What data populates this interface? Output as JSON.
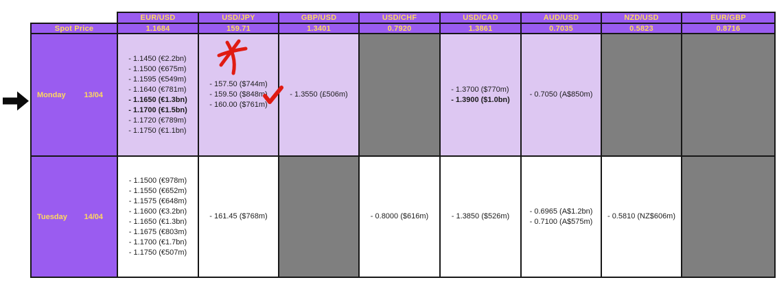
{
  "colors": {
    "purple": "#9a5cf0",
    "lavender": "#ddc7f2",
    "gray": "#7f7f7f",
    "yellow": "#ffd95e",
    "ink": "#1c1c1c",
    "border": "#161616",
    "red": "#e01b12"
  },
  "annotations": {
    "arrow_marker": "black right-arrow pointing at Monday row",
    "asterisk_note": "red hand-drawn asterisk above USD/JPY Monday cell",
    "checkmark_note": "red checkmark beside USD/JPY Monday entry - 159.50 ($848m)"
  },
  "table": {
    "corner_label": "Spot Price",
    "columns": [
      {
        "pair": "EUR/USD",
        "spot": "1.1684"
      },
      {
        "pair": "USD/JPY",
        "spot": "159.71"
      },
      {
        "pair": "GBP/USD",
        "spot": "1.3401"
      },
      {
        "pair": "USD/CHF",
        "spot": "0.7920"
      },
      {
        "pair": "USD/CAD",
        "spot": "1.3861"
      },
      {
        "pair": "AUD/USD",
        "spot": "0.7035"
      },
      {
        "pair": "NZD/USD",
        "spot": "0.5823"
      },
      {
        "pair": "EUR/GBP",
        "spot": "0.8716"
      }
    ],
    "rows": [
      {
        "day": "Monday",
        "date": "13/04",
        "cells": [
          {
            "state": "active",
            "entries": [
              {
                "text": "- 1.1450 (€2.2bn)"
              },
              {
                "text": "- 1.1500 (€675m)"
              },
              {
                "text": "- 1.1595 (€549m)"
              },
              {
                "text": "- 1.1640 (€781m)"
              },
              {
                "text": "- 1.1650 (€1.3bn)",
                "bold": true
              },
              {
                "text": "- 1.1700 (€1.5bn)",
                "bold": true
              },
              {
                "text": "- 1.1720 (€789m)"
              },
              {
                "text": "- 1.1750 (€1.1bn)"
              }
            ]
          },
          {
            "state": "active",
            "entries": [
              {
                "text": "- 157.50 ($744m)"
              },
              {
                "text": "- 159.50 ($848m)",
                "check": true
              },
              {
                "text": "- 160.00 ($761m)"
              }
            ]
          },
          {
            "state": "active",
            "entries": [
              {
                "text": "- 1.3550 (£506m)"
              }
            ]
          },
          {
            "state": "empty"
          },
          {
            "state": "active",
            "entries": [
              {
                "text": "- 1.3700 ($770m)"
              },
              {
                "text": "- 1.3900 ($1.0bn)",
                "bold": true
              }
            ]
          },
          {
            "state": "active",
            "entries": [
              {
                "text": "- 0.7050 (A$850m)"
              }
            ]
          },
          {
            "state": "empty"
          },
          {
            "state": "empty"
          }
        ]
      },
      {
        "day": "Tuesday",
        "date": "14/04",
        "cells": [
          {
            "state": "active",
            "entries": [
              {
                "text": "- 1.1500 (€978m)"
              },
              {
                "text": "- 1.1550 (€652m)"
              },
              {
                "text": "- 1.1575 (€648m)"
              },
              {
                "text": "- 1.1600 (€3.2bn)"
              },
              {
                "text": "- 1.1650 (€1.3bn)"
              },
              {
                "text": "- 1.1675 (€803m)"
              },
              {
                "text": "- 1.1700 (€1.7bn)"
              },
              {
                "text": "- 1.1750 (€507m)"
              }
            ]
          },
          {
            "state": "active",
            "entries": [
              {
                "text": "- 161.45 ($768m)"
              }
            ]
          },
          {
            "state": "empty"
          },
          {
            "state": "active",
            "entries": [
              {
                "text": "- 0.8000 ($616m)"
              }
            ]
          },
          {
            "state": "active",
            "entries": [
              {
                "text": "- 1.3850 ($526m)"
              }
            ]
          },
          {
            "state": "active",
            "entries": [
              {
                "text": "- 0.6965 (A$1.2bn)"
              },
              {
                "text": "- 0.7100 (A$575m)"
              }
            ]
          },
          {
            "state": "active",
            "entries": [
              {
                "text": "- 0.5810 (NZ$606m)"
              }
            ]
          },
          {
            "state": "empty"
          }
        ]
      }
    ]
  }
}
